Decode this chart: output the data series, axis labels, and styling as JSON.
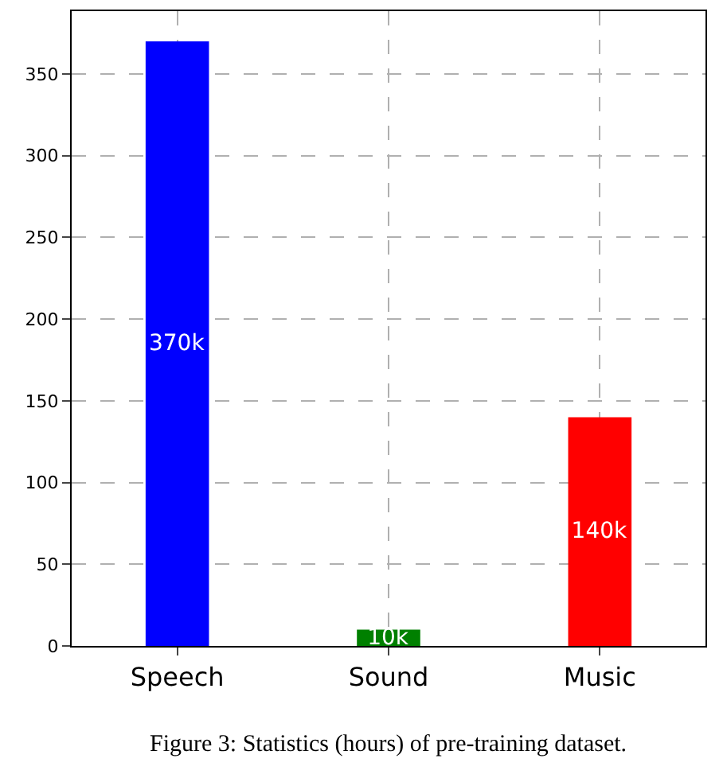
{
  "chart_data": {
    "type": "bar",
    "categories": [
      "Speech",
      "Sound",
      "Music"
    ],
    "values": [
      370,
      10,
      140
    ],
    "colors": [
      "#0000ff",
      "#008000",
      "#ff0000"
    ],
    "value_labels": [
      "370k",
      "10k",
      "140k"
    ],
    "ylim": [
      0,
      388.5
    ],
    "yticks": [
      0,
      50,
      100,
      150,
      200,
      250,
      300,
      350
    ],
    "grid": true,
    "annotations": [
      "Figure 3: Statistics (hours) of pre-training dataset."
    ]
  }
}
